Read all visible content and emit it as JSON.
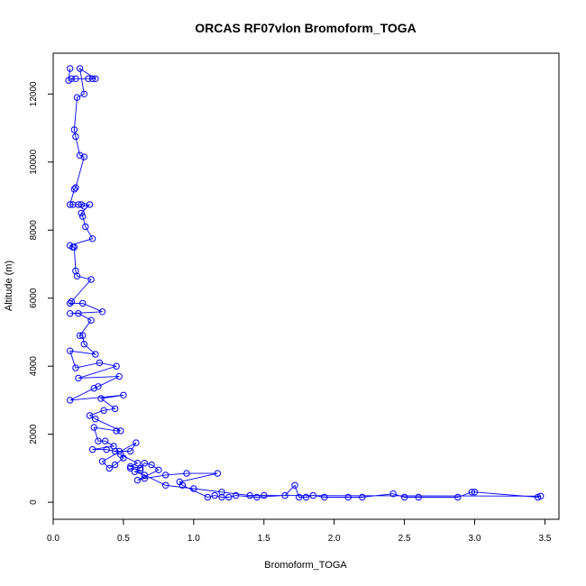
{
  "chart_data": {
    "type": "line",
    "title": "ORCAS RF07vlon Bromoform_TOGA",
    "xlabel": "Bromoform_TOGA",
    "ylabel": "Altitude (m)",
    "xlim": [
      0.0,
      3.6
    ],
    "ylim": [
      -500,
      13200
    ],
    "xticks": [
      0.0,
      0.5,
      1.0,
      1.5,
      2.0,
      2.5,
      3.0,
      3.5
    ],
    "xtick_labels": [
      "0.0",
      "0.5",
      "1.0",
      "1.5",
      "2.0",
      "2.5",
      "3.0",
      "3.5"
    ],
    "yticks": [
      0,
      2000,
      4000,
      6000,
      8000,
      10000,
      12000
    ],
    "ytick_labels": [
      "0",
      "2000",
      "4000",
      "6000",
      "8000",
      "10000",
      "12000"
    ],
    "series_color": "#0000ff",
    "grid": false,
    "series": [
      {
        "values": [
          [
            0.12,
            12750
          ],
          [
            0.11,
            12400
          ],
          [
            0.13,
            12450
          ],
          [
            0.16,
            12450
          ],
          [
            0.25,
            12450
          ],
          [
            0.28,
            12450
          ],
          [
            0.3,
            12450
          ],
          [
            0.19,
            12750
          ],
          [
            0.22,
            12000
          ],
          [
            0.17,
            11900
          ],
          [
            0.15,
            10950
          ],
          [
            0.16,
            10750
          ],
          [
            0.19,
            10200
          ],
          [
            0.22,
            10150
          ],
          [
            0.16,
            9250
          ],
          [
            0.15,
            9200
          ],
          [
            0.12,
            8750
          ],
          [
            0.14,
            8750
          ],
          [
            0.18,
            8750
          ],
          [
            0.2,
            8750
          ],
          [
            0.22,
            8700
          ],
          [
            0.26,
            8750
          ],
          [
            0.2,
            8500
          ],
          [
            0.21,
            8400
          ],
          [
            0.23,
            8100
          ],
          [
            0.28,
            7750
          ],
          [
            0.12,
            7550
          ],
          [
            0.14,
            7500
          ],
          [
            0.15,
            7500
          ],
          [
            0.16,
            6800
          ],
          [
            0.17,
            6650
          ],
          [
            0.27,
            6550
          ],
          [
            0.13,
            5900
          ],
          [
            0.12,
            5850
          ],
          [
            0.21,
            5850
          ],
          [
            0.35,
            5600
          ],
          [
            0.12,
            5550
          ],
          [
            0.18,
            5550
          ],
          [
            0.27,
            5350
          ],
          [
            0.19,
            4900
          ],
          [
            0.21,
            4900
          ],
          [
            0.22,
            4650
          ],
          [
            0.3,
            4350
          ],
          [
            0.12,
            4450
          ],
          [
            0.16,
            3950
          ],
          [
            0.33,
            4100
          ],
          [
            0.45,
            4000
          ],
          [
            0.18,
            3650
          ],
          [
            0.47,
            3700
          ],
          [
            0.32,
            3400
          ],
          [
            0.29,
            3350
          ],
          [
            0.12,
            3000
          ],
          [
            0.5,
            3150
          ],
          [
            0.34,
            3050
          ],
          [
            0.44,
            2750
          ],
          [
            0.36,
            2700
          ],
          [
            0.26,
            2550
          ],
          [
            0.3,
            2450
          ],
          [
            0.48,
            2100
          ],
          [
            0.45,
            2100
          ],
          [
            0.29,
            2200
          ],
          [
            0.32,
            1800
          ],
          [
            0.37,
            1800
          ],
          [
            0.43,
            1650
          ],
          [
            0.28,
            1550
          ],
          [
            0.38,
            1550
          ],
          [
            0.44,
            1500
          ],
          [
            0.47,
            1500
          ],
          [
            0.55,
            1500
          ],
          [
            0.59,
            1750
          ],
          [
            0.35,
            1200
          ],
          [
            0.4,
            1000
          ],
          [
            0.44,
            1100
          ],
          [
            0.5,
            1300
          ],
          [
            0.48,
            1400
          ],
          [
            0.6,
            1150
          ],
          [
            0.55,
            1050
          ],
          [
            0.62,
            1000
          ],
          [
            0.65,
            1150
          ],
          [
            0.7,
            1100
          ],
          [
            0.75,
            950
          ],
          [
            0.6,
            650
          ],
          [
            0.65,
            700
          ],
          [
            0.8,
            800
          ],
          [
            0.95,
            850
          ],
          [
            1.17,
            850
          ],
          [
            0.9,
            600
          ],
          [
            0.92,
            500
          ],
          [
            1.1,
            150
          ],
          [
            1.15,
            200
          ],
          [
            1.2,
            150
          ],
          [
            1.25,
            150
          ],
          [
            1.3,
            200
          ],
          [
            1.45,
            150
          ],
          [
            1.65,
            200
          ],
          [
            1.72,
            500
          ],
          [
            1.75,
            150
          ],
          [
            1.8,
            150
          ],
          [
            1.85,
            200
          ],
          [
            1.93,
            150
          ],
          [
            2.1,
            150
          ],
          [
            2.2,
            150
          ],
          [
            2.42,
            250
          ],
          [
            2.5,
            150
          ],
          [
            2.6,
            150
          ],
          [
            2.88,
            150
          ],
          [
            2.98,
            300
          ],
          [
            3.0,
            300
          ],
          [
            3.45,
            150
          ],
          [
            3.47,
            180
          ],
          [
            1.5,
            200
          ],
          [
            1.4,
            200
          ],
          [
            1.2,
            300
          ],
          [
            1.0,
            400
          ],
          [
            0.8,
            500
          ],
          [
            0.65,
            800
          ],
          [
            0.58,
            900
          ],
          [
            0.62,
            950
          ],
          [
            0.55,
            1000
          ]
        ]
      }
    ]
  }
}
